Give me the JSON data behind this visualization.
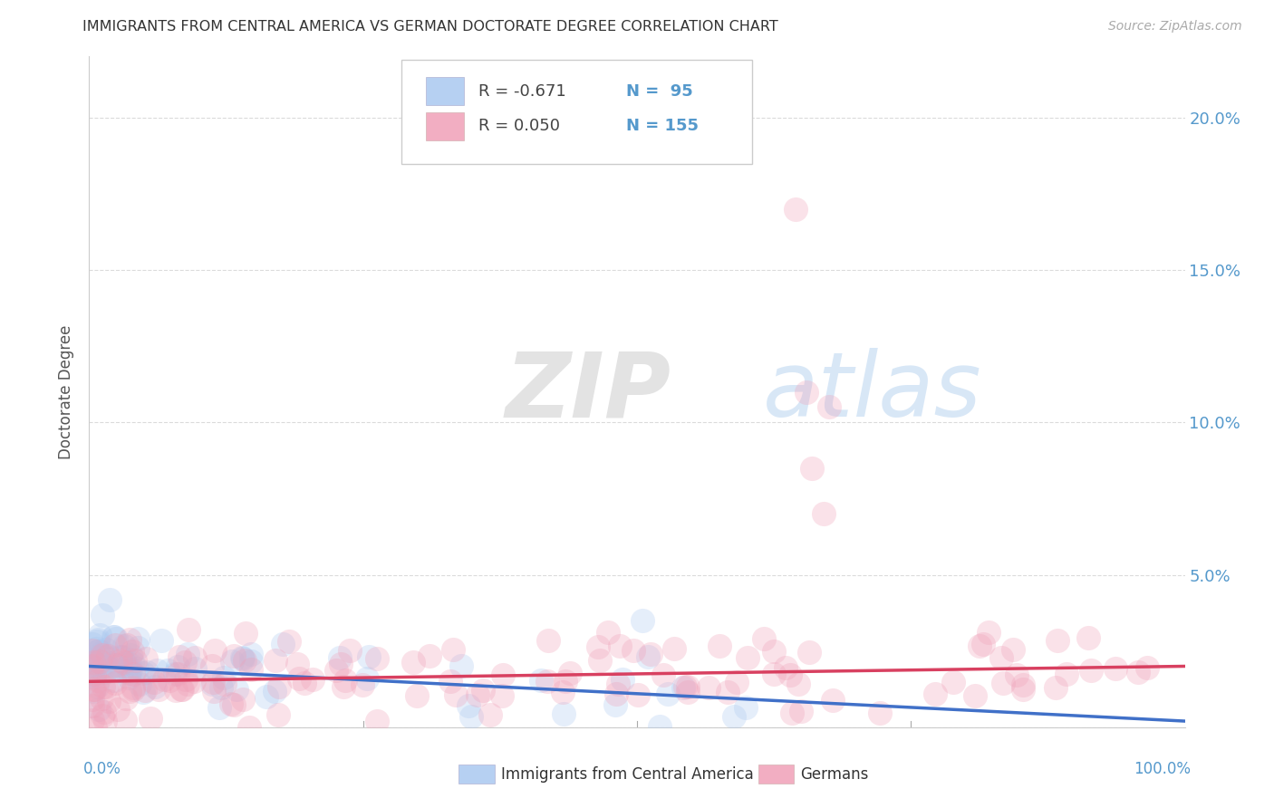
{
  "title": "IMMIGRANTS FROM CENTRAL AMERICA VS GERMAN DOCTORATE DEGREE CORRELATION CHART",
  "source": "Source: ZipAtlas.com",
  "ylabel": "Doctorate Degree",
  "blue_color": "#aac8f0",
  "pink_color": "#f0a0b8",
  "blue_line_color": "#4070c8",
  "pink_line_color": "#d84060",
  "axis_label_color": "#5599cc",
  "grid_color": "#d8d8d8",
  "watermark_zip_color": "#c0cce0",
  "watermark_atlas_color": "#b8d4f0",
  "xlim": [
    0,
    100
  ],
  "ylim": [
    0,
    22
  ],
  "ytick_vals": [
    0,
    5,
    10,
    15,
    20
  ],
  "ytick_labels": [
    "",
    "5.0%",
    "10.0%",
    "15.0%",
    "20.0%"
  ],
  "blue_seed": 42,
  "pink_seed": 99,
  "legend_r_blue": "R = -0.671",
  "legend_n_blue": "N =  95",
  "legend_r_pink": "R = 0.050",
  "legend_n_pink": "N = 155"
}
